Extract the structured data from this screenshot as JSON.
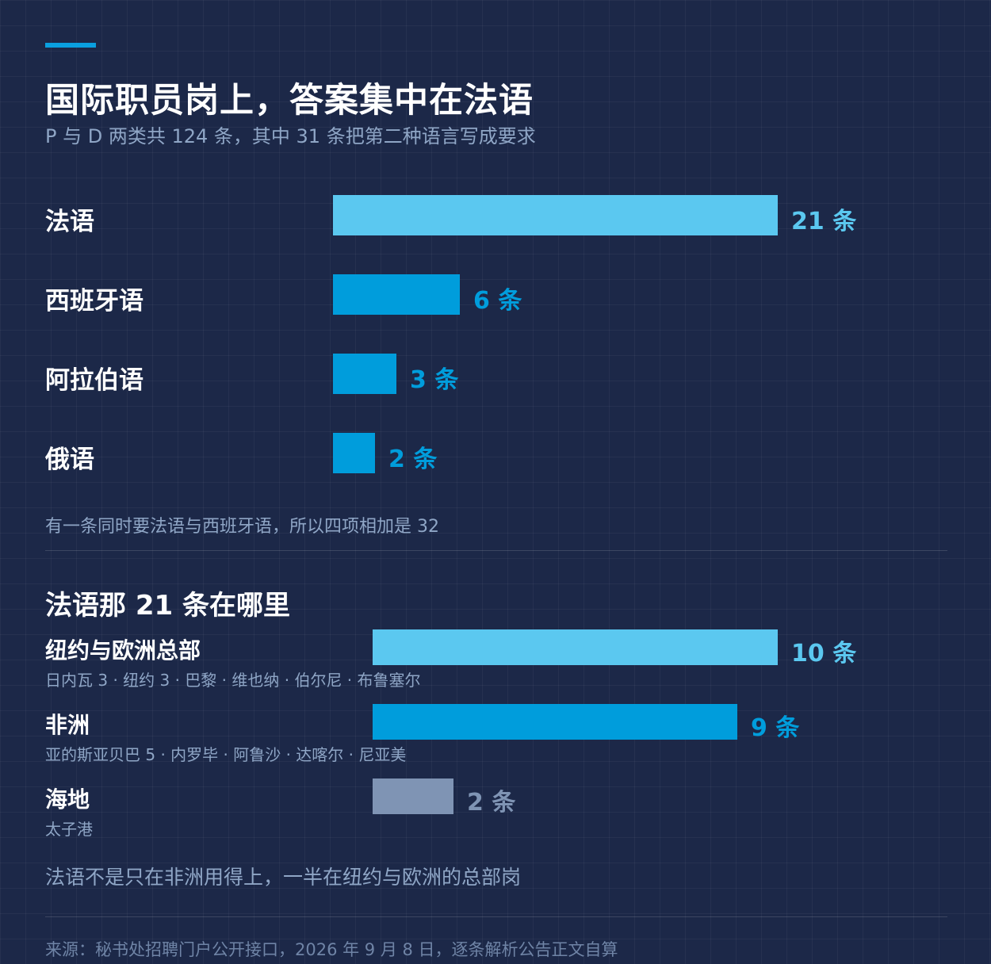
{
  "header": {
    "title": "国际职员岗上，答案集中在法语",
    "subtitle": "P 与 D 两类共 124 条，其中 31 条把第二种语言写成要求"
  },
  "chart_data": [
    {
      "type": "bar",
      "orientation": "horizontal",
      "categories": [
        "法语",
        "西班牙语",
        "阿拉伯语",
        "俄语"
      ],
      "values": [
        21,
        6,
        3,
        2
      ],
      "value_labels": [
        "21 条",
        "6 条",
        "3 条",
        "2 条"
      ],
      "colors": [
        "#5bc8f0",
        "#009ddc",
        "#009ddc",
        "#009ddc"
      ],
      "label_colors": [
        "#5bc8f0",
        "#009ddc",
        "#009ddc",
        "#009ddc"
      ],
      "note": "有一条同时要法语与西班牙语，所以四项相加是 32"
    },
    {
      "type": "bar",
      "orientation": "horizontal",
      "title": "法语那 21 条在哪里",
      "categories": [
        "纽约与欧洲总部",
        "非洲",
        "海地"
      ],
      "subtitles": [
        "日内瓦 3 · 纽约 3 · 巴黎 · 维也纳 · 伯尔尼 · 布鲁塞尔",
        "亚的斯亚贝巴 5 · 内罗毕 · 阿鲁沙 · 达喀尔 · 尼亚美",
        "太子港"
      ],
      "values": [
        10,
        9,
        2
      ],
      "value_labels": [
        "10 条",
        "9 条",
        "2 条"
      ],
      "colors": [
        "#5bc8f0",
        "#009ddc",
        "#7f94b4"
      ],
      "label_colors": [
        "#5bc8f0",
        "#009ddc",
        "#7f94b4"
      ],
      "note": "法语不是只在非洲用得上，一半在纽约与欧洲的总部岗"
    }
  ],
  "source": "来源：秘书处招聘门户公开接口，2026 年 9 月 8 日，逐条解析公告正文自算"
}
